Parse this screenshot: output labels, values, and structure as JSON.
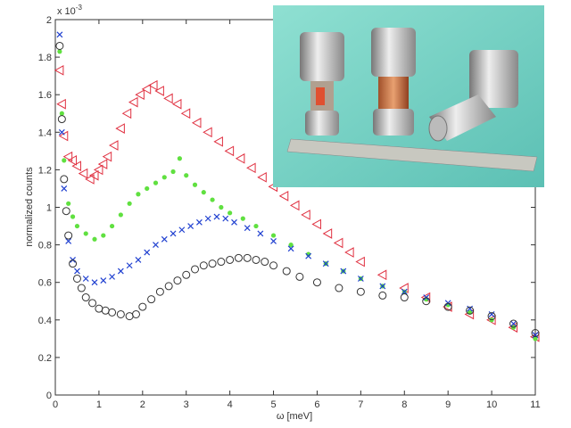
{
  "chart_data": {
    "type": "scatter",
    "xlabel": "ω [meV]",
    "ylabel": "normalized counts",
    "y_multiplier_label": "x 10",
    "y_multiplier_exponent": "-3",
    "xlim": [
      0,
      11
    ],
    "ylim": [
      0,
      2
    ],
    "x_ticks": [
      "0",
      "1",
      "2",
      "3",
      "4",
      "5",
      "6",
      "7",
      "8",
      "9",
      "10",
      "11"
    ],
    "y_ticks": [
      "0",
      "0.2",
      "0.4",
      "0.6",
      "0.8",
      "1",
      "1.2",
      "1.4",
      "1.6",
      "1.8",
      "2"
    ],
    "grid": false,
    "y_units_note": "values in units of 1e-3",
    "series": [
      {
        "marker": "triangle-left",
        "color": "#e03040",
        "x": [
          0.1,
          0.15,
          0.2,
          0.3,
          0.4,
          0.5,
          0.65,
          0.8,
          0.9,
          1,
          1.1,
          1.2,
          1.35,
          1.5,
          1.65,
          1.8,
          1.95,
          2.1,
          2.25,
          2.4,
          2.6,
          2.8,
          3,
          3.25,
          3.5,
          3.75,
          4,
          4.25,
          4.5,
          4.75,
          5,
          5.25,
          5.5,
          5.75,
          6,
          6.25,
          6.5,
          6.75,
          7,
          7.5,
          8,
          8.5,
          9,
          9.5,
          10,
          10.5,
          11
        ],
        "y": [
          1.73,
          1.55,
          1.38,
          1.27,
          1.25,
          1.22,
          1.18,
          1.15,
          1.17,
          1.2,
          1.23,
          1.27,
          1.33,
          1.42,
          1.5,
          1.56,
          1.6,
          1.63,
          1.65,
          1.62,
          1.58,
          1.55,
          1.5,
          1.45,
          1.4,
          1.35,
          1.3,
          1.26,
          1.21,
          1.16,
          1.11,
          1.06,
          1.01,
          0.96,
          0.91,
          0.86,
          0.81,
          0.76,
          0.71,
          0.64,
          0.57,
          0.52,
          0.47,
          0.43,
          0.4,
          0.36,
          0.31
        ]
      },
      {
        "marker": "dot",
        "color": "#60e040",
        "x": [
          0.1,
          0.15,
          0.2,
          0.3,
          0.4,
          0.5,
          0.7,
          0.9,
          1.1,
          1.3,
          1.5,
          1.7,
          1.9,
          2.1,
          2.3,
          2.5,
          2.7,
          2.85,
          3,
          3.2,
          3.4,
          3.6,
          3.8,
          4,
          4.3,
          4.6,
          5,
          5.4,
          5.8,
          6.2,
          6.6,
          7,
          7.5,
          8,
          8.5,
          9,
          9.5,
          10,
          10.5,
          11
        ],
        "y": [
          1.83,
          1.5,
          1.25,
          1.02,
          0.95,
          0.9,
          0.86,
          0.83,
          0.85,
          0.9,
          0.96,
          1.02,
          1.07,
          1.1,
          1.13,
          1.16,
          1.19,
          1.26,
          1.17,
          1.12,
          1.08,
          1.04,
          1.0,
          0.97,
          0.94,
          0.9,
          0.85,
          0.8,
          0.75,
          0.7,
          0.66,
          0.62,
          0.58,
          0.55,
          0.51,
          0.48,
          0.44,
          0.4,
          0.36,
          0.3
        ]
      },
      {
        "marker": "x",
        "color": "#2040d0",
        "x": [
          0.1,
          0.15,
          0.2,
          0.3,
          0.4,
          0.5,
          0.7,
          0.9,
          1.1,
          1.3,
          1.5,
          1.7,
          1.9,
          2.1,
          2.3,
          2.5,
          2.7,
          2.9,
          3.1,
          3.3,
          3.5,
          3.7,
          3.9,
          4.1,
          4.4,
          4.7,
          5,
          5.4,
          5.8,
          6.2,
          6.6,
          7,
          7.5,
          8,
          8.5,
          9,
          9.5,
          10,
          10.5,
          11
        ],
        "y": [
          1.92,
          1.4,
          1.1,
          0.82,
          0.72,
          0.66,
          0.62,
          0.6,
          0.61,
          0.63,
          0.66,
          0.69,
          0.72,
          0.76,
          0.8,
          0.83,
          0.86,
          0.88,
          0.9,
          0.92,
          0.94,
          0.95,
          0.94,
          0.92,
          0.89,
          0.86,
          0.82,
          0.78,
          0.74,
          0.7,
          0.66,
          0.62,
          0.58,
          0.55,
          0.52,
          0.49,
          0.46,
          0.43,
          0.38,
          0.32
        ]
      },
      {
        "marker": "circle",
        "color": "#333333",
        "x": [
          0.1,
          0.15,
          0.2,
          0.25,
          0.3,
          0.4,
          0.5,
          0.6,
          0.7,
          0.85,
          1,
          1.15,
          1.3,
          1.5,
          1.7,
          1.85,
          2,
          2.2,
          2.4,
          2.6,
          2.8,
          3,
          3.2,
          3.4,
          3.6,
          3.8,
          4,
          4.2,
          4.4,
          4.6,
          4.8,
          5,
          5.3,
          5.6,
          6,
          6.5,
          7,
          7.5,
          8,
          8.5,
          9,
          9.5,
          10,
          10.5,
          11
        ],
        "y": [
          1.86,
          1.47,
          1.15,
          0.98,
          0.85,
          0.7,
          0.62,
          0.57,
          0.52,
          0.49,
          0.46,
          0.45,
          0.44,
          0.43,
          0.42,
          0.43,
          0.47,
          0.51,
          0.55,
          0.58,
          0.61,
          0.64,
          0.67,
          0.69,
          0.7,
          0.71,
          0.72,
          0.73,
          0.73,
          0.72,
          0.71,
          0.69,
          0.66,
          0.63,
          0.6,
          0.57,
          0.55,
          0.53,
          0.52,
          0.5,
          0.47,
          0.45,
          0.42,
          0.38,
          0.33
        ]
      }
    ]
  },
  "inset_photo": {
    "description_icon": "sample-cans-photo",
    "background_color": "#7fd6c8"
  }
}
